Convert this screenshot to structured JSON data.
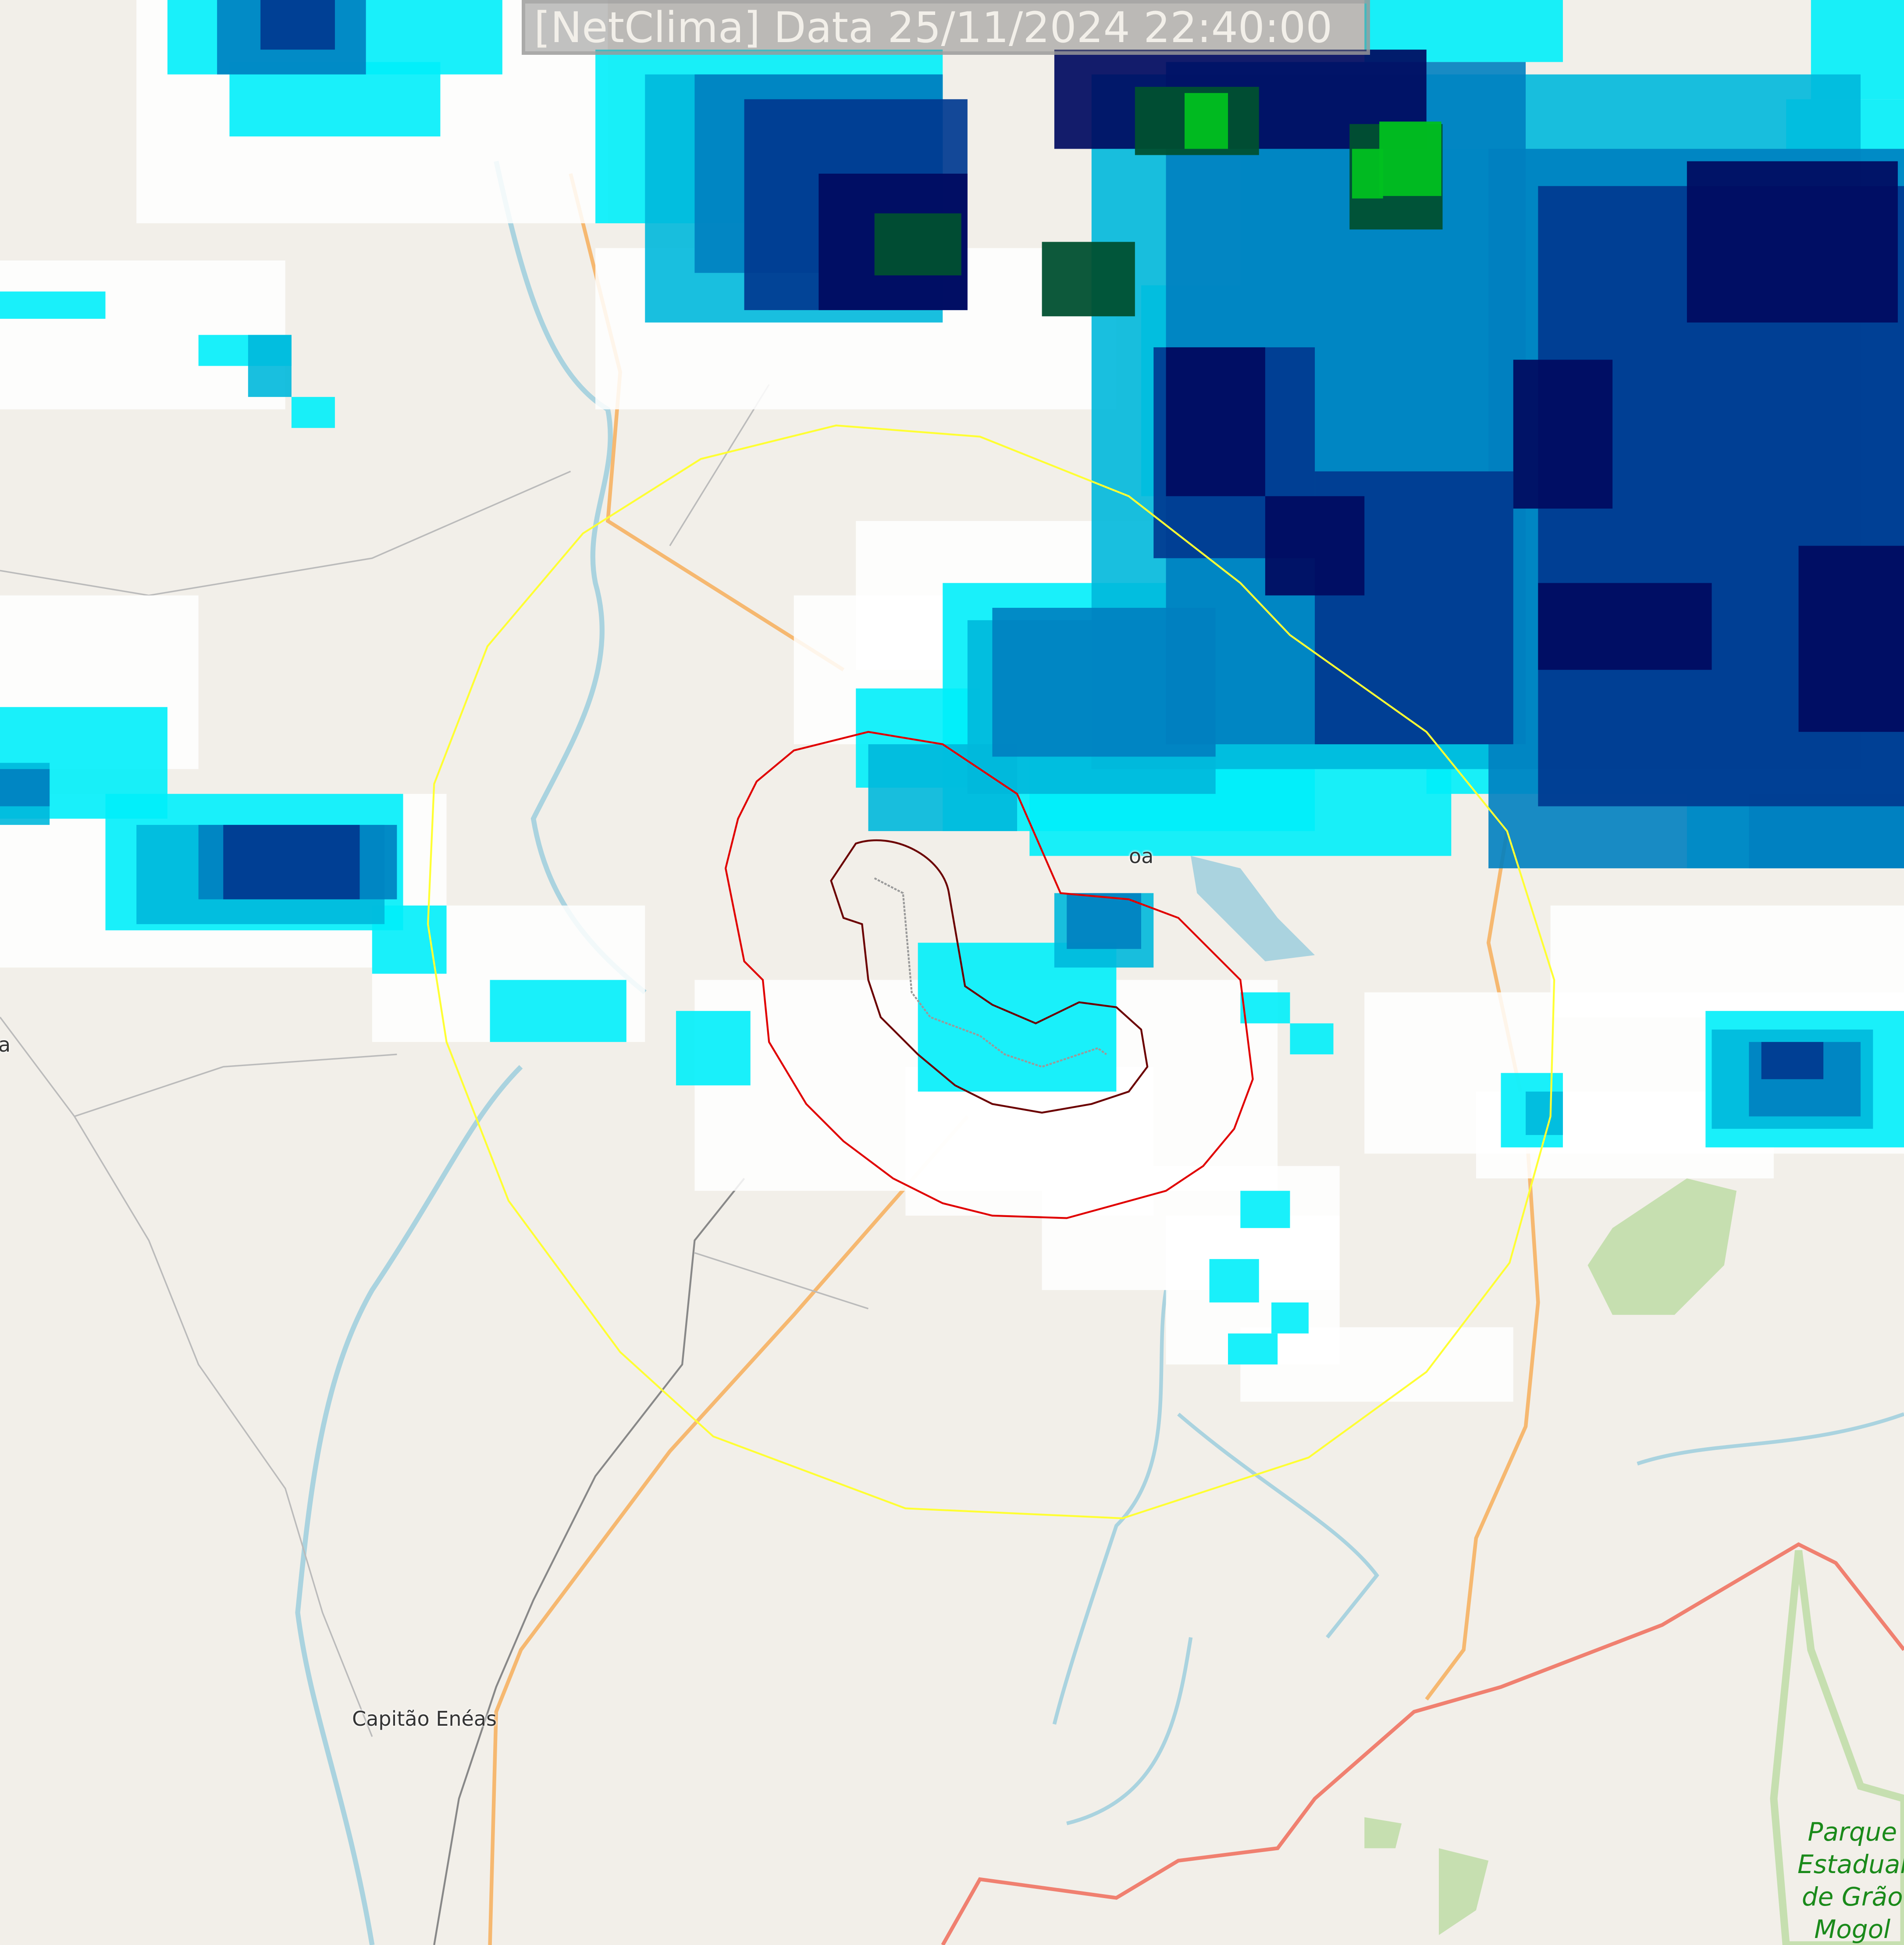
{
  "header": {
    "title": "[NetClima] Data 25/11/2024 22:40:00"
  },
  "map": {
    "labels": {
      "capitao_eneas": "Capitão Enéas",
      "park": [
        "Parque",
        "Estadual",
        "de Grão",
        "Mogol"
      ],
      "partial_town_center": "oa",
      "partial_town_left": "a"
    },
    "overlays": {
      "outer_ring_color": "#ffff33",
      "inner_ring_color": "#e00000",
      "core_contour_color": "#6b0000",
      "track_color": "#9a9a9a"
    },
    "radar_colors": {
      "light": "#ffffff",
      "cyan": "#00eefa",
      "light_blue": "#00b8dc",
      "blue": "#0080c0",
      "dark_blue": "#003a90",
      "navy": "#000a60",
      "dark_green": "#005030",
      "green": "#00c020"
    },
    "base_colors": {
      "land": "#f2efe9",
      "water": "#aad3df",
      "road_primary": "#f6b870",
      "road_trunk": "#f08070",
      "park": "#c6dfb0"
    }
  }
}
